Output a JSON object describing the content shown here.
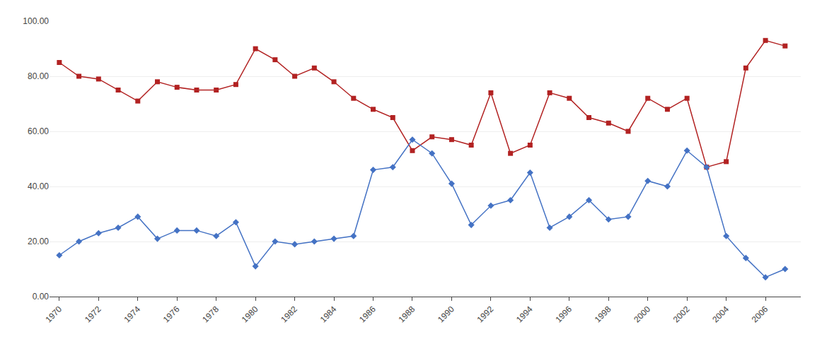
{
  "chart_data": {
    "type": "line",
    "x": [
      1970,
      1971,
      1972,
      1973,
      1974,
      1975,
      1976,
      1977,
      1978,
      1979,
      1980,
      1981,
      1982,
      1983,
      1984,
      1985,
      1986,
      1987,
      1988,
      1989,
      1990,
      1991,
      1992,
      1993,
      1994,
      1995,
      1996,
      1997,
      1998,
      1999,
      2000,
      2001,
      2002,
      2003,
      2004,
      2005,
      2006,
      2007
    ],
    "series": [
      {
        "color": "#B22222",
        "marker": "square",
        "values": [
          85,
          80,
          79,
          75,
          71,
          78,
          76,
          75,
          75,
          77,
          90,
          86,
          80,
          83,
          78,
          72,
          68,
          65,
          53,
          58,
          57,
          55,
          74,
          52,
          55,
          74,
          72,
          65,
          63,
          60,
          72,
          68,
          72,
          47,
          49,
          83,
          93,
          91
        ]
      },
      {
        "color": "#4472C4",
        "marker": "diamond",
        "values": [
          15,
          20,
          23,
          25,
          29,
          21,
          24,
          24,
          22,
          27,
          11,
          20,
          19,
          20,
          21,
          22,
          46,
          47,
          57,
          52,
          41,
          26,
          33,
          35,
          45,
          25,
          29,
          35,
          28,
          29,
          42,
          40,
          53,
          47,
          22,
          14,
          7,
          10
        ]
      }
    ],
    "xlim": [
      1969.5,
      2007.8
    ],
    "xticks": [
      1970,
      1972,
      1974,
      1976,
      1978,
      1980,
      1982,
      1984,
      1986,
      1988,
      1990,
      1992,
      1994,
      1996,
      1998,
      2000,
      2002,
      2004,
      2006
    ],
    "ylim": [
      0,
      100
    ],
    "yticks": [
      {
        "value": 0,
        "label": "0.00"
      },
      {
        "value": 20,
        "label": "20.00"
      },
      {
        "value": 40,
        "label": "40.00"
      },
      {
        "value": 60,
        "label": "60.00"
      },
      {
        "value": 80,
        "label": "80.00"
      },
      {
        "value": 100,
        "label": "100.00"
      }
    ],
    "grid": true
  }
}
